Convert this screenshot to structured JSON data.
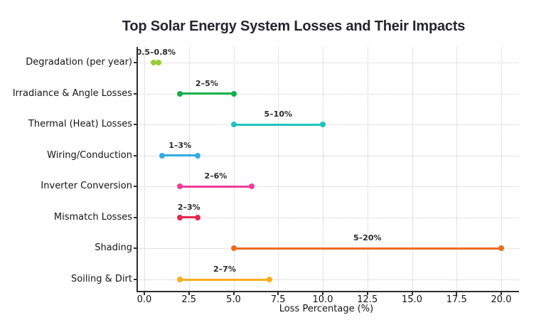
{
  "chart_data": {
    "type": "dumbbell-range",
    "title": "Top Solar Energy System Losses and Their Impacts",
    "xlabel": "Loss Percentage (%)",
    "x_ticks": [
      0.0,
      2.5,
      5.0,
      7.5,
      10.0,
      12.5,
      15.0,
      17.5,
      20.0
    ],
    "x_tick_labels": [
      "0.0",
      "2.5",
      "5.0",
      "7.5",
      "10.0",
      "12.5",
      "15.0",
      "17.5",
      "20.0"
    ],
    "xlim": [
      -0.4,
      21.0
    ],
    "grid": {
      "style": "dotted",
      "vertical": true,
      "horizontal": true
    },
    "legend": "none",
    "categories": [
      "Degradation (per year)",
      "Irradiance & Angle Losses",
      "Thermal (Heat) Losses",
      "Wiring/Conduction",
      "Inverter Conversion",
      "Mismatch Losses",
      "Shading",
      "Soiling & Dirt"
    ],
    "series": [
      {
        "category": "Degradation (per year)",
        "min": 0.5,
        "max": 0.8,
        "label": "0.5–0.8%",
        "color": "#9ACD32"
      },
      {
        "category": "Irradiance & Angle Losses",
        "min": 2,
        "max": 5,
        "label": "2–5%",
        "color": "#12B04B"
      },
      {
        "category": "Thermal (Heat) Losses",
        "min": 5,
        "max": 10,
        "label": "5–10%",
        "color": "#1EC3B9"
      },
      {
        "category": "Wiring/Conduction",
        "min": 1,
        "max": 3,
        "label": "1–3%",
        "color": "#33ACE4"
      },
      {
        "category": "Inverter Conversion",
        "min": 2,
        "max": 6,
        "label": "2–6%",
        "color": "#F03C9C"
      },
      {
        "category": "Mismatch Losses",
        "min": 2,
        "max": 3,
        "label": "2–3%",
        "color": "#E82A4D"
      },
      {
        "category": "Shading",
        "min": 5,
        "max": 20,
        "label": "5–20%",
        "color": "#EE6B21"
      },
      {
        "category": "Soiling & Dirt",
        "min": 2,
        "max": 7,
        "label": "2–7%",
        "color": "#FBAD1C"
      }
    ]
  }
}
